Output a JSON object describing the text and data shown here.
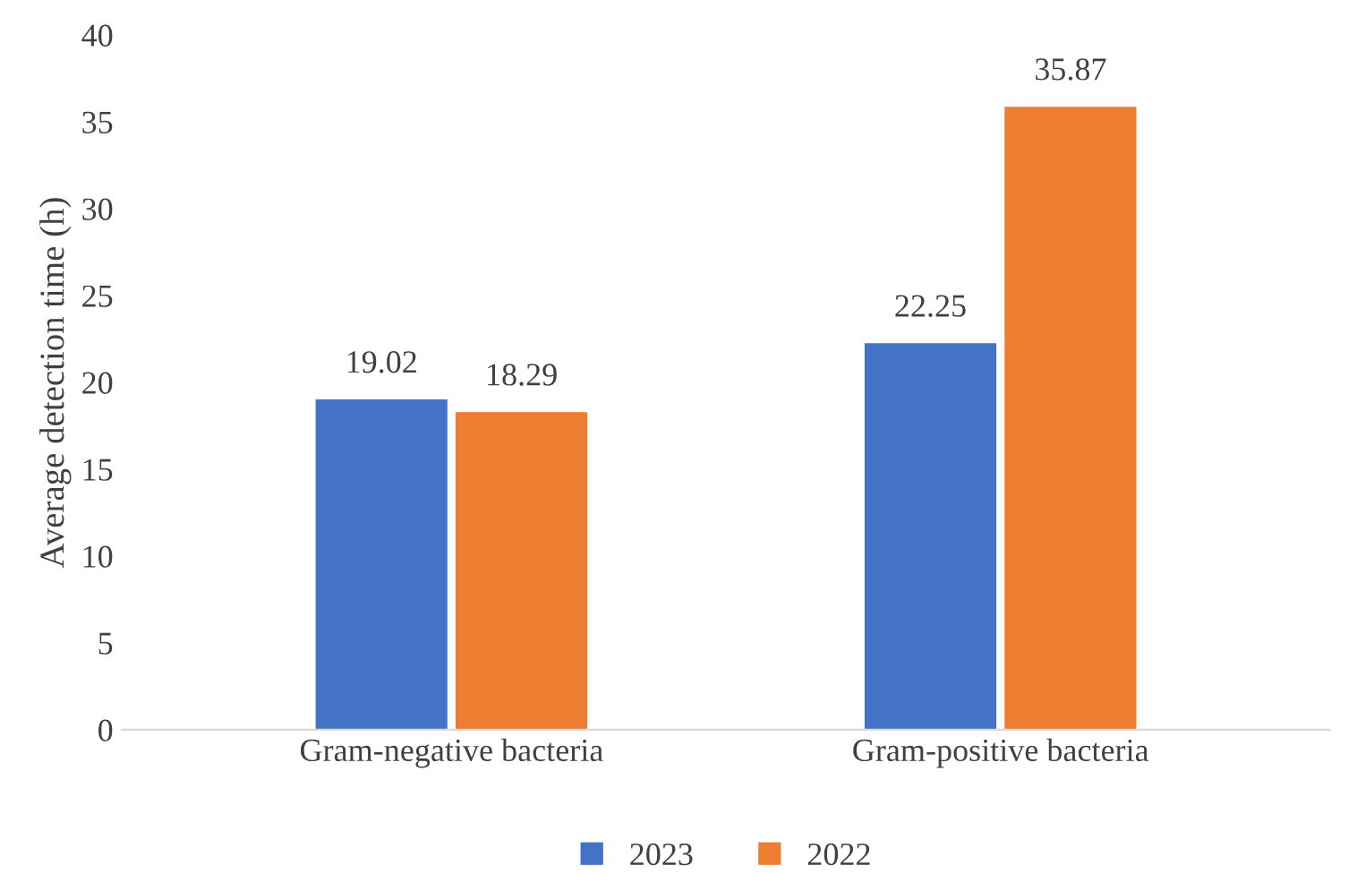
{
  "chart_data": {
    "type": "bar",
    "ylabel": "Average detection time (h)",
    "categories": [
      "Gram-negative bacteria",
      "Gram-positive bacteria"
    ],
    "series": [
      {
        "name": "2023",
        "color": "#4472c4",
        "values": [
          19.02,
          22.25
        ]
      },
      {
        "name": "2022",
        "color": "#ed7d31",
        "values": [
          18.29,
          35.87
        ]
      }
    ],
    "ylim": [
      0,
      40
    ],
    "yticks": [
      0,
      5,
      10,
      15,
      20,
      25,
      30,
      35,
      40
    ],
    "data_labels": true,
    "grid": false,
    "legend": "bottom"
  }
}
